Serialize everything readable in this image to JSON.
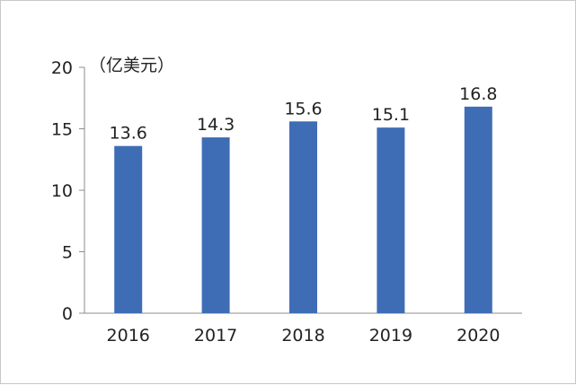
{
  "chart_data": {
    "type": "bar",
    "title": "",
    "xlabel": "",
    "ylabel": "",
    "unit": "（亿美元）",
    "categories": [
      "2016",
      "2017",
      "2018",
      "2019",
      "2020"
    ],
    "values": [
      13.6,
      14.3,
      15.6,
      15.1,
      16.8
    ],
    "data_labels": [
      "13.6",
      "14.3",
      "15.6",
      "15.1",
      "16.8"
    ],
    "ylim": [
      0,
      20
    ],
    "yticks": [
      "0",
      "5",
      "10",
      "15",
      "20"
    ],
    "ytick_values": [
      0,
      5,
      10,
      15,
      20
    ],
    "grid": false,
    "legend": "none",
    "bar_color": "#3f6db5",
    "axis_color": "#8c8c8c"
  }
}
